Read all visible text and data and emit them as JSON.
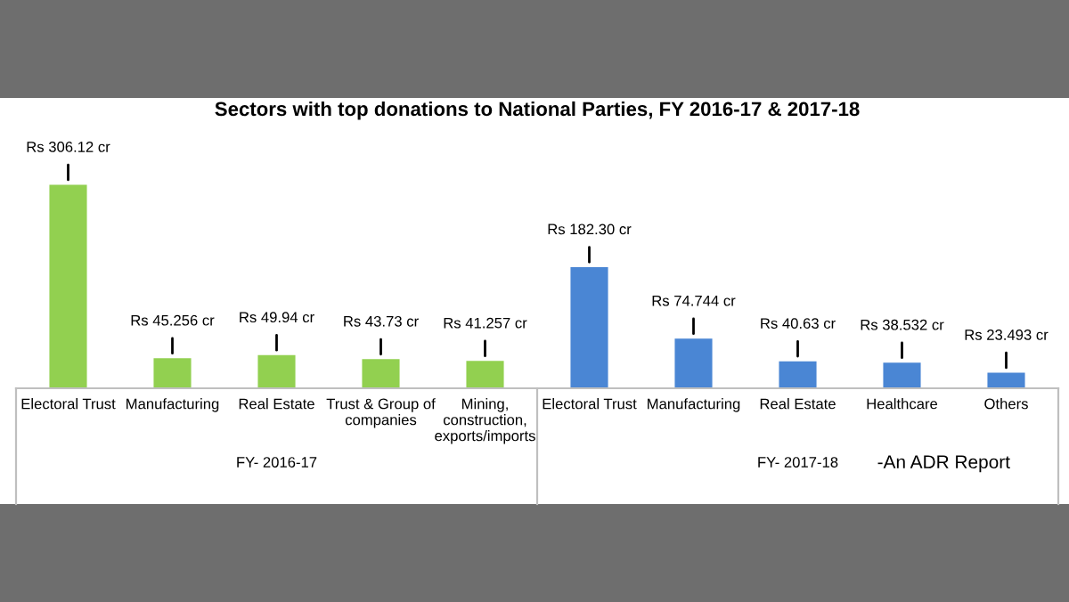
{
  "chart_data": {
    "type": "bar",
    "title": "Sectors with top donations to National Parties, FY 2016-17 & 2017-18",
    "categories": [
      "Electoral Trust",
      "Manufacturing",
      "Real Estate",
      "Trust & Group of\ncompanies",
      "Mining,\nconstruction,\nexports/imports",
      "Electoral Trust",
      "Manufacturing",
      "Real Estate",
      "Healthcare",
      "Others"
    ],
    "values": [
      306.12,
      45.256,
      49.94,
      43.73,
      41.257,
      182.3,
      74.744,
      40.63,
      38.532,
      23.493
    ],
    "colors": [
      "#92d050",
      "#92d050",
      "#92d050",
      "#92d050",
      "#92d050",
      "#4a86d4",
      "#4a86d4",
      "#4a86d4",
      "#4a86d4",
      "#4a86d4"
    ],
    "value_labels": [
      "Rs 306.12 cr",
      "Rs 45.256 cr",
      "Rs 49.94 cr",
      "Rs 43.73 cr",
      "Rs 41.257 cr",
      "Rs 182.30 cr",
      "Rs 74.744 cr",
      "Rs 40.63 cr",
      "Rs 38.532 cr",
      "Rs 23.493 cr"
    ],
    "annotations": [
      "FY- 2016-17",
      "FY- 2017-18",
      "-An ADR Report"
    ]
  }
}
